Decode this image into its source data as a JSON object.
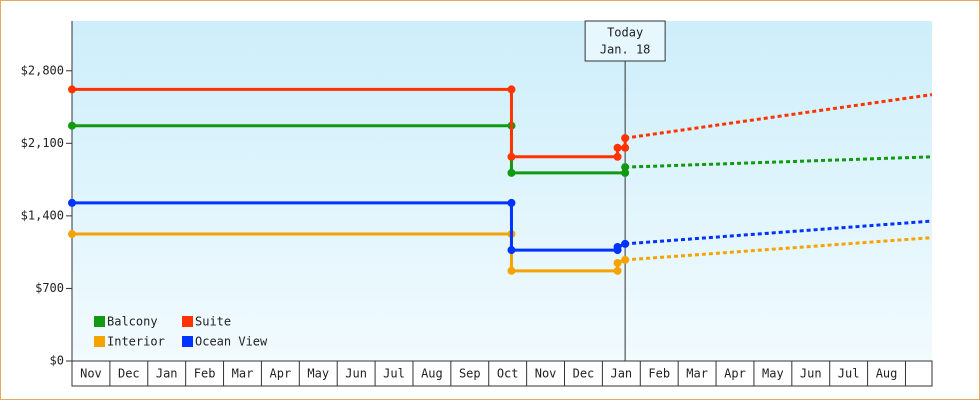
{
  "chart_data": {
    "type": "line",
    "xlim": [
      0,
      22.7
    ],
    "ylim": [
      0,
      3280
    ],
    "yticks": [
      {
        "value": 0,
        "label": "$0"
      },
      {
        "value": 700,
        "label": "$700"
      },
      {
        "value": 1400,
        "label": "$1,400"
      },
      {
        "value": 2100,
        "label": "$2,100"
      },
      {
        "value": 2800,
        "label": "$2,800"
      }
    ],
    "xticks": [
      {
        "value": 0,
        "label": "Nov"
      },
      {
        "value": 1,
        "label": "Dec"
      },
      {
        "value": 2,
        "label": "Jan"
      },
      {
        "value": 3,
        "label": "Feb"
      },
      {
        "value": 4,
        "label": "Mar"
      },
      {
        "value": 5,
        "label": "Apr"
      },
      {
        "value": 6,
        "label": "May"
      },
      {
        "value": 7,
        "label": "Jun"
      },
      {
        "value": 8,
        "label": "Jul"
      },
      {
        "value": 9,
        "label": "Aug"
      },
      {
        "value": 10,
        "label": "Sep"
      },
      {
        "value": 11,
        "label": "Oct"
      },
      {
        "value": 12,
        "label": "Nov"
      },
      {
        "value": 13,
        "label": "Dec"
      },
      {
        "value": 14,
        "label": "Jan"
      },
      {
        "value": 15,
        "label": "Feb"
      },
      {
        "value": 16,
        "label": "Mar"
      },
      {
        "value": 17,
        "label": "Apr"
      },
      {
        "value": 18,
        "label": "May"
      },
      {
        "value": 19,
        "label": "Jun"
      },
      {
        "value": 20,
        "label": "Jul"
      },
      {
        "value": 21,
        "label": "Aug"
      }
    ],
    "annotation": {
      "x": 14.6,
      "text": [
        "Today",
        "Jan. 18"
      ]
    },
    "legend": "lower left",
    "series": [
      {
        "name": "Balcony",
        "color": "#119911",
        "x": [
          0,
          11.6,
          11.6,
          14.6,
          14.6
        ],
        "values": [
          2270,
          2270,
          1815,
          1815,
          1870
        ],
        "forecast_x": [
          14.6,
          22.7
        ],
        "forecast_values": [
          1870,
          1970
        ]
      },
      {
        "name": "Suite",
        "color": "#ff3300",
        "x": [
          0,
          11.6,
          11.6,
          14.4,
          14.4,
          14.6,
          14.6
        ],
        "values": [
          2620,
          2620,
          1970,
          1970,
          2057,
          2057,
          2150
        ],
        "forecast_x": [
          14.6,
          22.7
        ],
        "forecast_values": [
          2150,
          2570
        ]
      },
      {
        "name": "Interior",
        "color": "#f5a300",
        "x": [
          0,
          11.6,
          11.6,
          14.4,
          14.4,
          14.6
        ],
        "values": [
          1225,
          1225,
          870,
          870,
          946,
          975
        ],
        "forecast_x": [
          14.6,
          22.7
        ],
        "forecast_values": [
          975,
          1190
        ]
      },
      {
        "name": "Ocean View",
        "color": "#0033ff",
        "x": [
          0,
          11.6,
          11.6,
          14.4,
          14.4,
          14.6
        ],
        "values": [
          1525,
          1525,
          1070,
          1070,
          1100,
          1130
        ],
        "forecast_x": [
          14.6,
          22.7
        ],
        "forecast_values": [
          1130,
          1350
        ]
      }
    ]
  }
}
